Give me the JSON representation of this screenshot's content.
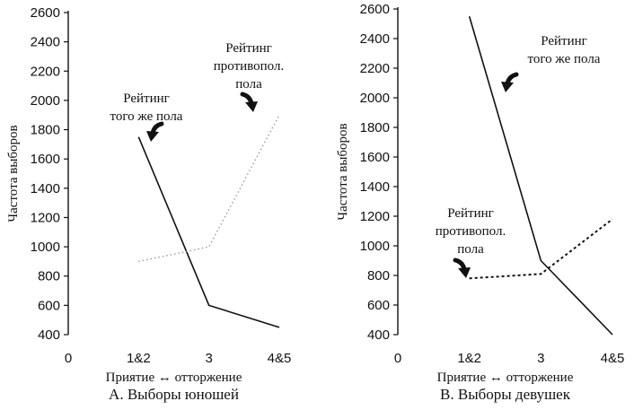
{
  "chart_data": [
    {
      "type": "line",
      "caption": "А. Выборы юношей",
      "xlabel": "Приятие ↔ отторжение",
      "ylabel": "Частота выборов",
      "x_ticks": [
        "0",
        "1&2",
        "3",
        "4&5"
      ],
      "y_ticks": [
        "400",
        "600",
        "800",
        "1000",
        "1200",
        "1400",
        "1600",
        "1800",
        "2000",
        "2200",
        "2400",
        "2600"
      ],
      "ylim": [
        400,
        2600
      ],
      "grid": false,
      "categories": [
        "1&2",
        "3",
        "4&5"
      ],
      "series": [
        {
          "name": "Рейтинг того же пола",
          "label_lines": [
            "Рейтинг",
            "того же пола"
          ],
          "style": "solid",
          "values": [
            1750,
            600,
            450
          ]
        },
        {
          "name": "Рейтинг противопол. пола",
          "label_lines": [
            "Рейтинг",
            "противопол.",
            "пола"
          ],
          "style": "dotted",
          "values": [
            900,
            1000,
            1900
          ]
        }
      ]
    },
    {
      "type": "line",
      "caption": "В. Выборы девушек",
      "xlabel": "Приятие ↔ отторжение",
      "ylabel": "Частота выборов",
      "x_ticks": [
        "0",
        "1&2",
        "3",
        "4&5"
      ],
      "y_ticks": [
        "400",
        "600",
        "800",
        "1000",
        "1200",
        "1400",
        "1600",
        "1800",
        "2000",
        "2200",
        "2400",
        "2600"
      ],
      "ylim": [
        400,
        2600
      ],
      "grid": false,
      "categories": [
        "1&2",
        "3",
        "4&5"
      ],
      "series": [
        {
          "name": "Рейтинг того же пола",
          "label_lines": [
            "Рейтинг",
            "того же пола"
          ],
          "style": "solid",
          "values": [
            2550,
            900,
            400
          ]
        },
        {
          "name": "Рейтинг противопол. пола",
          "label_lines": [
            "Рейтинг",
            "противопол.",
            "пола"
          ],
          "style": "dashed",
          "values": [
            780,
            810,
            1180
          ]
        }
      ]
    }
  ],
  "colors": {
    "ink": "#111111",
    "dotted_line": "#9a9a9a"
  },
  "icons": [
    "curved-arrow-icon"
  ]
}
